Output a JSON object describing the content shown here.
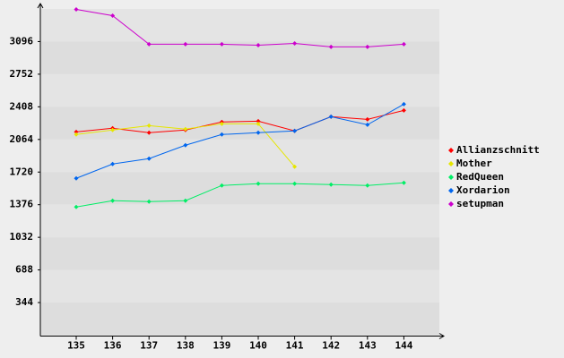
{
  "chart_data": {
    "type": "line",
    "categories": [
      "135",
      "136",
      "137",
      "138",
      "139",
      "140",
      "141",
      "142",
      "143",
      "144"
    ],
    "series": [
      {
        "name": "Allianzschnitt",
        "color": "#ff0000",
        "values": [
          2144,
          2182,
          2135,
          2163,
          2248,
          2257,
          2154,
          2304,
          2276,
          2370
        ]
      },
      {
        "name": "Mother",
        "color": "#e6e600",
        "values": [
          2116,
          2163,
          2210,
          2173,
          2229,
          2229,
          1777,
          null,
          null,
          null
        ]
      },
      {
        "name": "RedQueen",
        "color": "#00ee66",
        "values": [
          1352,
          1418,
          1409,
          1418,
          1579,
          1597,
          1597,
          1588,
          1579,
          1607
        ]
      },
      {
        "name": "Xordarion",
        "color": "#0066ee",
        "values": [
          1654,
          1805,
          1862,
          2003,
          2116,
          2135,
          2154,
          2304,
          2219,
          2436
        ]
      },
      {
        "name": "setupman",
        "color": "#cc00cc",
        "values": [
          3435,
          3369,
          3068,
          3068,
          3068,
          3058,
          3077,
          3040,
          3040,
          3068
        ]
      }
    ],
    "ylim": [
      0,
      3440
    ],
    "yticks": [
      344,
      688,
      1032,
      1376,
      1720,
      2064,
      2408,
      2752,
      3096
    ],
    "legend": "right"
  }
}
